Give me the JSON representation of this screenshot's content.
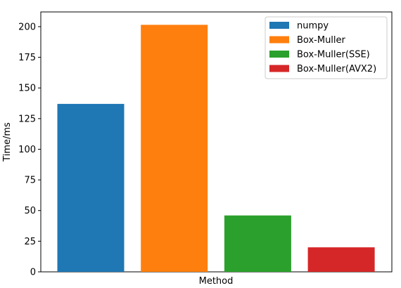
{
  "chart_data": {
    "type": "bar",
    "xlabel": "Method",
    "ylabel": "Time/ms",
    "ylim": [
      0,
      212
    ],
    "yticks": [
      0,
      25,
      50,
      75,
      100,
      125,
      150,
      175,
      200
    ],
    "grid": false,
    "legend_position": "top-right",
    "series": [
      {
        "name": "numpy",
        "value": 137,
        "color": "#1f77b4"
      },
      {
        "name": "Box-Muller",
        "value": 201.5,
        "color": "#ff7f0e"
      },
      {
        "name": "Box-Muller(SSE)",
        "value": 46,
        "color": "#2ca02c"
      },
      {
        "name": "Box-Muller(AVX2)",
        "value": 20,
        "color": "#d62728"
      }
    ]
  }
}
